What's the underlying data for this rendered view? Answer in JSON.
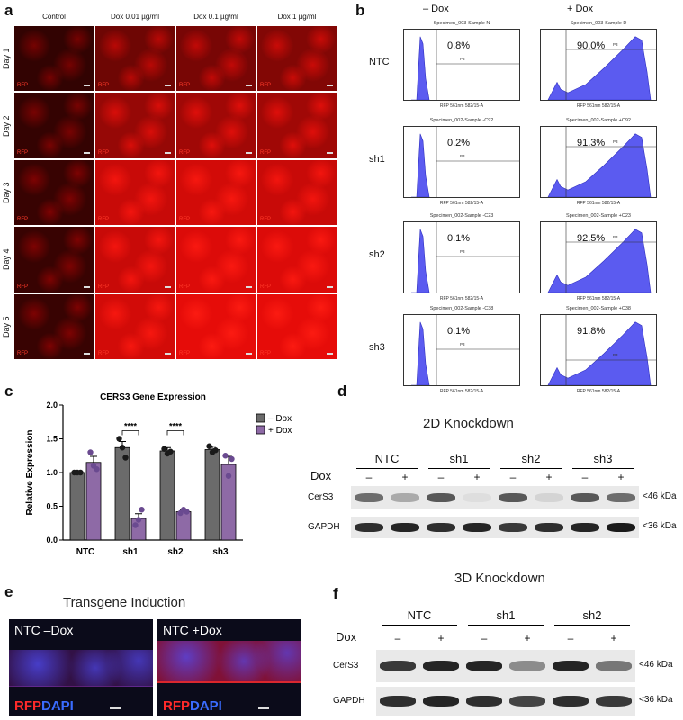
{
  "panels": {
    "a": "a",
    "b": "b",
    "c": "c",
    "d": "d",
    "e": "e",
    "f": "f"
  },
  "panel_a": {
    "columns": [
      "Control",
      "Dox 0.01 µg/ml",
      "Dox 0.1 µg/ml",
      "Dox 1 µg/ml"
    ],
    "rows": [
      "Day 1",
      "Day 2",
      "Day 3",
      "Day 4",
      "Day 5"
    ],
    "cell_label": "RFP",
    "intensity": [
      [
        0.05,
        0.35,
        0.4,
        0.45
      ],
      [
        0.06,
        0.55,
        0.6,
        0.6
      ],
      [
        0.08,
        0.8,
        0.85,
        0.8
      ],
      [
        0.08,
        0.8,
        0.9,
        0.9
      ],
      [
        0.08,
        0.85,
        0.95,
        0.95
      ]
    ]
  },
  "panel_b": {
    "col_headers": [
      "– Dox",
      "+ Dox"
    ],
    "rows": [
      {
        "label": "NTC",
        "minus": {
          "title": "Specimen_003-Sample N",
          "pct": "0.8%"
        },
        "plus": {
          "title": "Specimen_003-Sample D",
          "pct": "90.0%"
        }
      },
      {
        "label": "sh1",
        "minus": {
          "title": "Specimen_002-Sample -C92",
          "pct": "0.2%"
        },
        "plus": {
          "title": "Specimen_002-Sample +C92",
          "pct": "91.3%"
        }
      },
      {
        "label": "sh2",
        "minus": {
          "title": "Specimen_002-Sample -C23",
          "pct": "0.1%"
        },
        "plus": {
          "title": "Specimen_002-Sample +C23",
          "pct": "92.5%"
        }
      },
      {
        "label": "sh3",
        "minus": {
          "title": "Specimen_002-Sample -C38",
          "pct": "0.1%"
        },
        "plus": {
          "title": "Specimen_002-Sample +C38",
          "pct": "91.8%"
        }
      }
    ],
    "xaxis": "RFP 561nm 582/15-A",
    "gate": "P3"
  },
  "chart_data": {
    "type": "bar",
    "title": "CERS3 Gene Expression",
    "ylabel": "Relative Expression",
    "categories": [
      "NTC",
      "sh1",
      "sh2",
      "sh3"
    ],
    "ylim": [
      0,
      2.0
    ],
    "yticks": [
      "0.0",
      "0.5",
      "1.0",
      "1.5",
      "2.0"
    ],
    "series": [
      {
        "name": "– Dox",
        "color": "#6b6b6b",
        "values": [
          1.0,
          1.37,
          1.32,
          1.34
        ],
        "errors": [
          0.01,
          0.09,
          0.05,
          0.05
        ],
        "points": [
          [
            1.0,
            1.0,
            1.0
          ],
          [
            1.5,
            1.37,
            1.22
          ],
          [
            1.35,
            1.28,
            1.31
          ],
          [
            1.39,
            1.3,
            1.33
          ]
        ]
      },
      {
        "name": "+ Dox",
        "color": "#8e6aa6",
        "values": [
          1.15,
          0.32,
          0.42,
          1.12
        ],
        "errors": [
          0.09,
          0.07,
          0.03,
          0.12
        ],
        "points": [
          [
            1.3,
            1.1,
            1.05
          ],
          [
            0.22,
            0.3,
            0.45
          ],
          [
            0.4,
            0.45,
            0.42
          ],
          [
            1.25,
            0.95,
            1.2
          ]
        ]
      }
    ],
    "significance": [
      {
        "category": "sh1",
        "label": "****"
      },
      {
        "category": "sh2",
        "label": "****"
      }
    ]
  },
  "panel_d": {
    "title": "2D Knockdown",
    "groups": [
      "NTC",
      "sh1",
      "sh2",
      "sh3"
    ],
    "dox_label": "Dox",
    "lane_signs": [
      "–",
      "+",
      "–",
      "+",
      "–",
      "+",
      "–",
      "+"
    ],
    "rows": [
      "CerS3",
      "GAPDH"
    ],
    "markers": [
      "<46 kDa",
      "<36 kDa"
    ],
    "cers3_intensity": [
      0.6,
      0.3,
      0.7,
      0.05,
      0.7,
      0.1,
      0.7,
      0.6
    ],
    "gapdh_intensity": [
      0.9,
      0.95,
      0.9,
      0.95,
      0.85,
      0.9,
      0.95,
      1.0
    ]
  },
  "panel_e": {
    "title": "Transgene Induction",
    "images": [
      {
        "label": "NTC –Dox",
        "rfp": 0.15
      },
      {
        "label": "NTC +Dox",
        "rfp": 0.8
      }
    ],
    "stain_rfp": "RFP",
    "stain_dapi": "DAPI"
  },
  "panel_f": {
    "title": "3D Knockdown",
    "groups": [
      "NTC",
      "sh1",
      "sh2"
    ],
    "dox_label": "Dox",
    "lane_signs": [
      "–",
      "+",
      "–",
      "+",
      "–",
      "+"
    ],
    "rows": [
      "CerS3",
      "GAPDH"
    ],
    "markers": [
      "<46 kDa",
      "<36 kDa"
    ],
    "cers3_intensity": [
      0.85,
      0.95,
      0.95,
      0.45,
      0.95,
      0.55
    ],
    "gapdh_intensity": [
      0.9,
      0.95,
      0.9,
      0.8,
      0.9,
      0.85
    ]
  }
}
